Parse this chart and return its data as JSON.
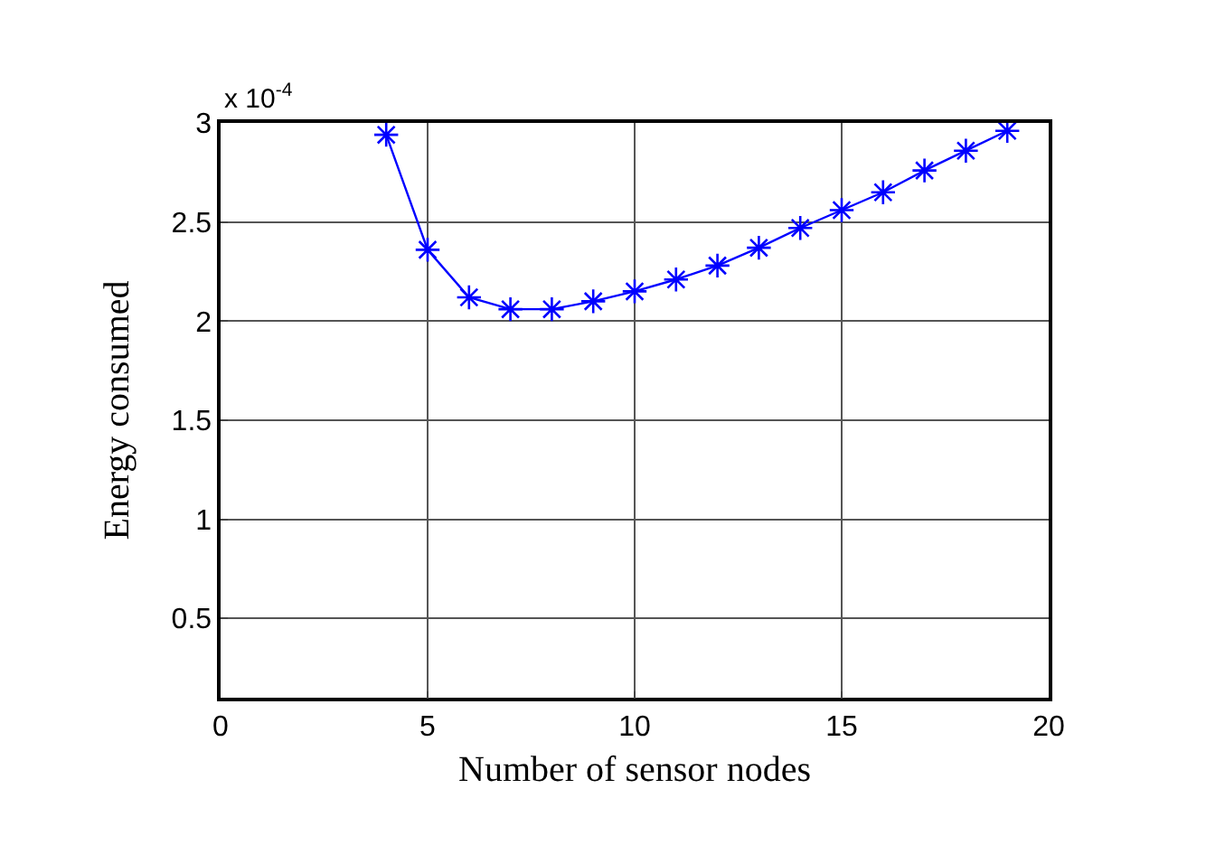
{
  "chart_data": {
    "type": "line",
    "xlabel": "Number of sensor nodes",
    "ylabel": "Energy consumed",
    "annotations": [
      "x 10$^{-4}$"
    ],
    "x": [
      4,
      5,
      6,
      7,
      8,
      9,
      10,
      11,
      12,
      13,
      14,
      15,
      16,
      17,
      18,
      19
    ],
    "series": [
      {
        "color": "#0000ff",
        "values": [
          2.94,
          2.36,
          2.12,
          2.06,
          2.06,
          2.1,
          2.15,
          2.21,
          2.28,
          2.37,
          2.47,
          2.56,
          2.65,
          2.76,
          2.86,
          2.96
        ]
      }
    ],
    "xlim": [
      0,
      20
    ],
    "xticks": [
      0,
      5,
      10,
      15,
      20
    ],
    "ylim": [
      0.1,
      3
    ],
    "yticks": [
      0.5,
      1,
      1.5,
      2,
      2.5,
      3
    ],
    "grid": true,
    "marker": "cross",
    "line_style": "solid",
    "legend": false
  }
}
